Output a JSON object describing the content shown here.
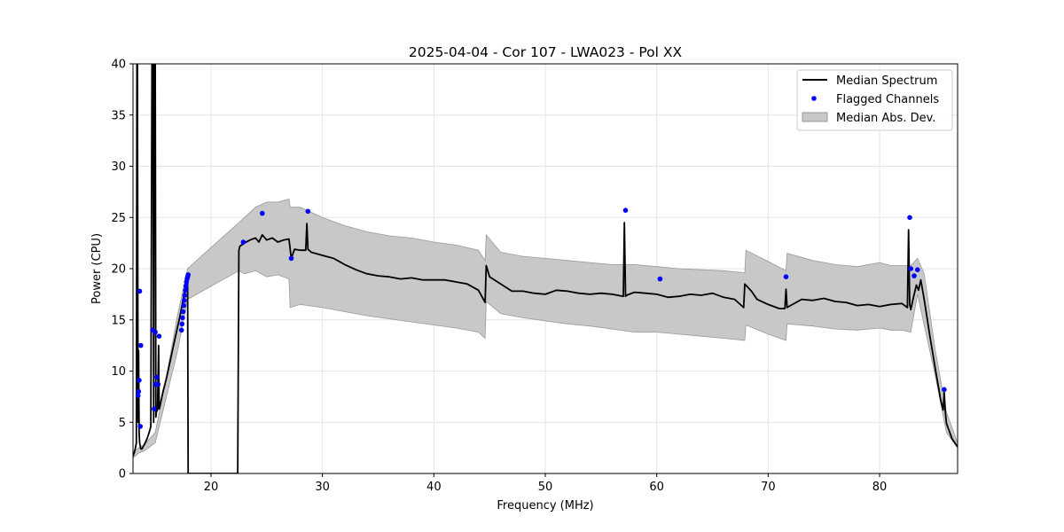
{
  "chart_data": {
    "type": "line",
    "title": "2025-04-04 - Cor 107 - LWA023 - Pol XX",
    "xlabel": "Frequency (MHz)",
    "ylabel": "Power (CPU)",
    "xlim": [
      13,
      87
    ],
    "ylim": [
      0,
      40
    ],
    "xticks": [
      20,
      30,
      40,
      50,
      60,
      70,
      80
    ],
    "yticks": [
      0,
      5,
      10,
      15,
      20,
      25,
      30,
      35,
      40
    ],
    "grid": true,
    "legend_position": "upper right",
    "colors": {
      "median": "#000000",
      "flagged": "#0000ff",
      "mad_fill": "#c8c8c8",
      "mad_edge": "#999999"
    },
    "series": [
      {
        "name": "Median Spectrum",
        "kind": "line",
        "x": [
          13.0,
          13.1,
          13.2,
          13.3,
          13.35,
          13.4,
          13.45,
          13.5,
          13.55,
          13.6,
          13.7,
          13.8,
          13.9,
          14.1,
          14.3,
          14.5,
          14.6,
          14.7,
          14.8,
          14.85,
          14.9,
          14.95,
          15.0,
          15.05,
          15.1,
          15.2,
          15.3,
          15.35,
          15.4,
          15.5,
          15.7,
          16.0,
          16.3,
          16.6,
          16.9,
          17.2,
          17.5,
          17.7,
          17.85,
          17.9,
          17.95,
          18.0,
          22.4,
          22.5,
          22.6,
          23.0,
          23.5,
          24.0,
          24.3,
          24.6,
          25.0,
          25.5,
          26.0,
          26.5,
          27.0,
          27.2,
          27.5,
          28.0,
          28.5,
          28.6,
          28.7,
          29.0,
          30.0,
          31.0,
          32.0,
          33.0,
          34.0,
          35.0,
          36.0,
          37.0,
          38.0,
          39.0,
          40.0,
          41.0,
          42.0,
          43.0,
          44.0,
          44.6,
          44.7,
          45.0,
          46.0,
          47.0,
          48.0,
          49.0,
          50.0,
          51.0,
          52.0,
          53.0,
          54.0,
          55.0,
          56.0,
          57.0,
          57.1,
          57.2,
          57.3,
          58.0,
          59.0,
          60.0,
          61.0,
          62.0,
          63.0,
          64.0,
          65.0,
          66.0,
          67.0,
          67.8,
          67.9,
          68.5,
          69.0,
          70.0,
          71.0,
          71.5,
          71.6,
          71.7,
          72.0,
          73.0,
          74.0,
          75.0,
          76.0,
          77.0,
          78.0,
          79.0,
          80.0,
          81.0,
          82.0,
          82.5,
          82.6,
          82.7,
          82.8,
          83.0,
          83.3,
          83.5,
          83.7,
          84.0,
          84.5,
          85.0,
          85.5,
          85.7,
          85.8,
          85.9,
          86.0,
          86.5,
          87.0
        ],
        "y": [
          1.7,
          2.0,
          2.4,
          3.0,
          40.0,
          40.0,
          5.0,
          12.0,
          4.0,
          3.0,
          2.4,
          2.4,
          2.6,
          3.0,
          3.5,
          4.2,
          4.6,
          40.0,
          40.0,
          5.0,
          40.0,
          40.0,
          40.0,
          5.5,
          6.0,
          6.2,
          12.5,
          6.3,
          6.5,
          7.0,
          8.0,
          9.3,
          10.8,
          12.3,
          13.8,
          15.3,
          17.0,
          18.3,
          19.0,
          19.0,
          0.0,
          0.0,
          0.0,
          21.8,
          22.2,
          22.5,
          22.8,
          23.0,
          22.6,
          23.3,
          22.8,
          23.0,
          22.6,
          22.8,
          22.9,
          21.0,
          21.9,
          21.8,
          21.8,
          24.4,
          21.9,
          21.6,
          21.3,
          21.0,
          20.4,
          19.9,
          19.5,
          19.3,
          19.2,
          19.0,
          19.1,
          18.9,
          18.9,
          18.9,
          18.7,
          18.5,
          17.9,
          16.7,
          20.3,
          19.2,
          18.5,
          17.8,
          17.8,
          17.6,
          17.5,
          17.9,
          17.8,
          17.6,
          17.5,
          17.6,
          17.5,
          17.3,
          24.5,
          17.3,
          17.4,
          17.7,
          17.6,
          17.5,
          17.2,
          17.3,
          17.5,
          17.4,
          17.6,
          17.2,
          17.0,
          16.2,
          18.5,
          17.8,
          17.0,
          16.5,
          16.1,
          16.1,
          18.0,
          16.2,
          16.4,
          17.0,
          16.9,
          17.1,
          16.8,
          16.7,
          16.4,
          16.5,
          16.3,
          16.5,
          16.6,
          16.2,
          23.8,
          16.5,
          16.0,
          17.0,
          18.4,
          17.9,
          18.9,
          17.0,
          13.5,
          10.2,
          7.1,
          6.2,
          7.9,
          6.0,
          4.9,
          3.4,
          2.6
        ]
      },
      {
        "name": "Flagged Channels",
        "kind": "scatter",
        "x": [
          13.45,
          13.5,
          13.55,
          13.6,
          13.65,
          13.7,
          14.75,
          14.9,
          15.0,
          15.05,
          15.15,
          15.25,
          15.35,
          17.35,
          17.4,
          17.45,
          17.5,
          17.55,
          17.6,
          17.65,
          17.7,
          17.75,
          17.8,
          17.85,
          17.9,
          17.95,
          22.9,
          24.6,
          27.2,
          28.7,
          57.2,
          60.3,
          71.6,
          82.7,
          82.8,
          83.1,
          83.4,
          85.8
        ],
        "y": [
          7.6,
          8.0,
          9.1,
          17.8,
          4.6,
          12.5,
          14.0,
          6.3,
          13.8,
          8.7,
          9.4,
          8.7,
          13.4,
          14.0,
          14.6,
          15.2,
          15.8,
          16.4,
          16.9,
          17.4,
          17.9,
          18.3,
          18.7,
          19.0,
          19.2,
          19.4,
          22.6,
          25.4,
          21.0,
          25.6,
          25.7,
          19.0,
          19.2,
          25.0,
          20.0,
          19.3,
          19.9,
          8.2
        ]
      },
      {
        "name": "Median Abs. Dev.",
        "kind": "band",
        "x": [
          13.0,
          13.5,
          14.0,
          15.0,
          16.0,
          17.0,
          17.9,
          22.5,
          23.0,
          24.0,
          25.0,
          26.0,
          27.0,
          27.1,
          28.0,
          30.0,
          32.0,
          34.0,
          36.0,
          38.0,
          40.0,
          42.0,
          44.0,
          44.6,
          44.7,
          46.0,
          48.0,
          50.0,
          52.0,
          54.0,
          56.0,
          58.0,
          60.0,
          62.0,
          64.0,
          66.0,
          67.9,
          68.0,
          70.0,
          71.6,
          71.7,
          74.0,
          76.0,
          78.0,
          80.0,
          81.0,
          82.0,
          82.8,
          83.4,
          84.0,
          85.0,
          86.0,
          87.0
        ],
        "lower": [
          1.5,
          2.0,
          2.2,
          3.0,
          7.5,
          12.0,
          17.0,
          19.8,
          19.5,
          19.8,
          19.2,
          19.4,
          19.0,
          16.2,
          16.5,
          16.2,
          15.8,
          15.4,
          15.1,
          14.8,
          14.5,
          14.2,
          13.8,
          13.2,
          16.8,
          15.6,
          15.2,
          14.9,
          14.6,
          14.4,
          14.1,
          13.8,
          13.8,
          13.6,
          13.4,
          13.2,
          13.0,
          14.5,
          13.6,
          13.0,
          14.6,
          14.4,
          14.1,
          14.0,
          14.2,
          14.0,
          14.0,
          13.8,
          17.5,
          14.5,
          9.5,
          4.0,
          2.5
        ],
        "upper": [
          2.0,
          2.5,
          2.8,
          4.0,
          9.5,
          15.5,
          20.0,
          24.5,
          25.0,
          26.0,
          26.5,
          26.5,
          26.8,
          26.0,
          26.0,
          25.0,
          24.2,
          23.6,
          23.2,
          23.0,
          22.6,
          22.3,
          21.8,
          20.8,
          23.3,
          21.6,
          21.2,
          21.0,
          20.8,
          20.6,
          20.4,
          20.4,
          20.2,
          20.0,
          19.9,
          19.8,
          19.6,
          21.8,
          20.7,
          19.8,
          21.5,
          20.8,
          20.4,
          20.2,
          20.6,
          20.3,
          20.3,
          20.3,
          21.0,
          19.5,
          12.0,
          6.0,
          3.0
        ]
      }
    ]
  }
}
